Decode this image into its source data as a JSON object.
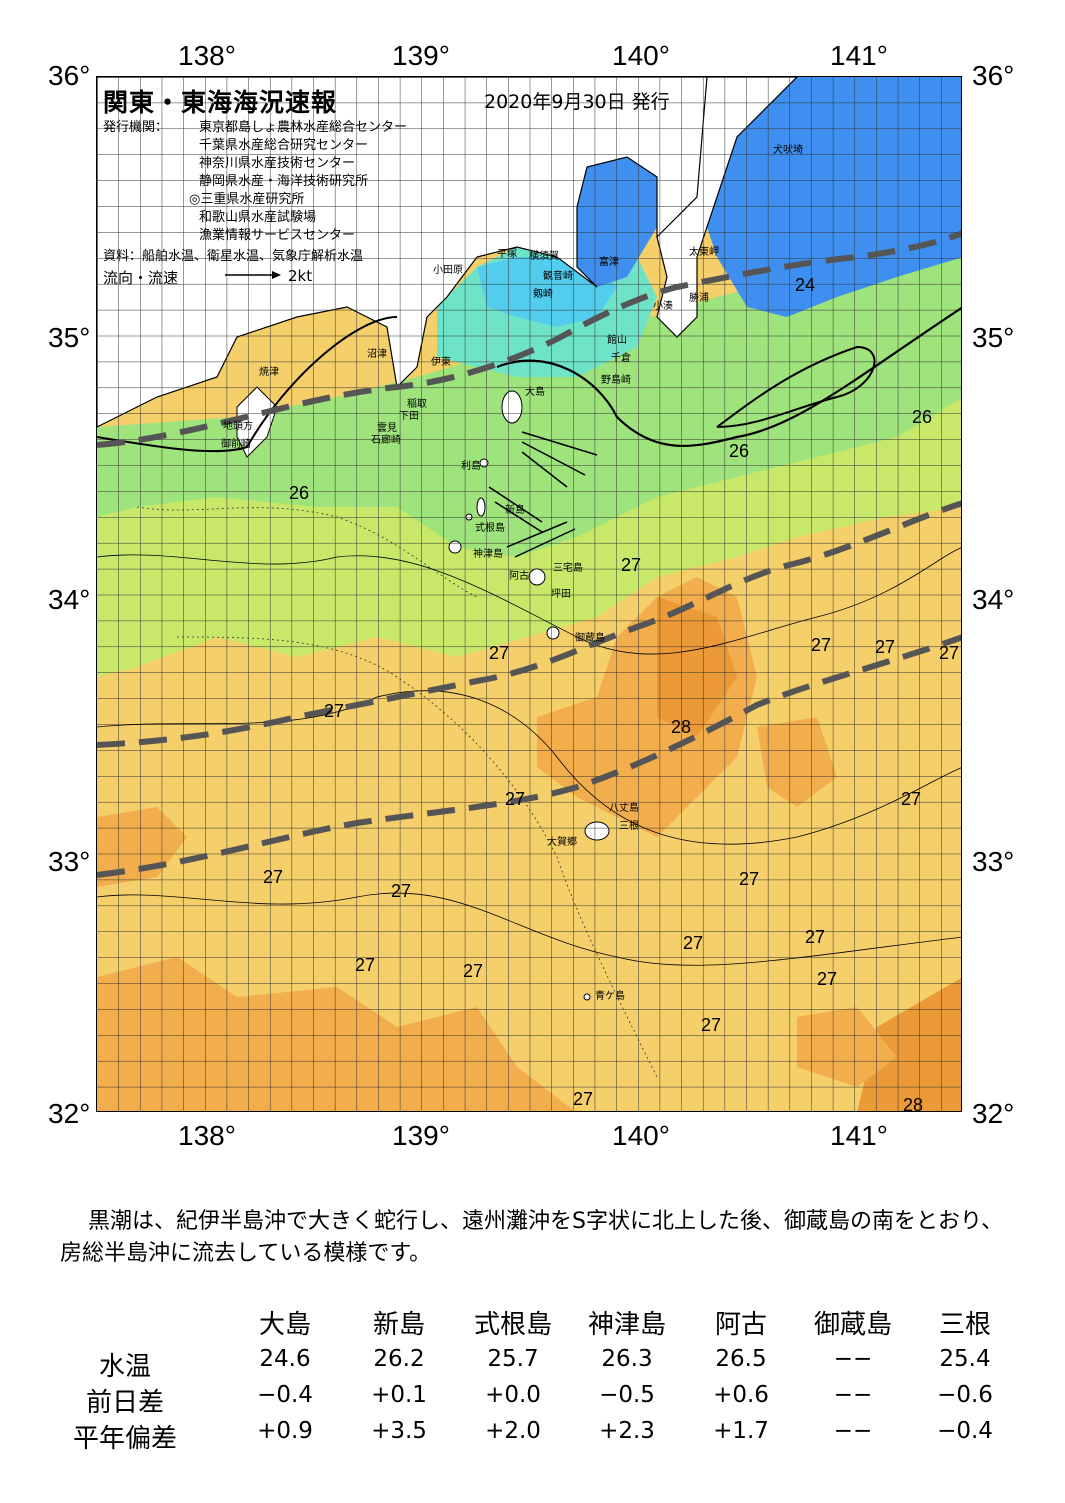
{
  "map": {
    "title": "関東・東海海況速報",
    "date": "2020年9月30日 発行",
    "agency_label": "発行機関：",
    "agencies": [
      "東京都島しょ農林水産総合センター",
      "千葉県水産総合研究センター",
      "神奈川県水産技術センター",
      "静岡県水産・海洋技術研究所",
      "◎三重県水産研究所",
      "和歌山県水産試験場",
      "漁業情報サービスセンター"
    ],
    "source": "資料：船舶水温、衛星水温、気象庁解析水温",
    "flow_label": "流向・流速",
    "flow_unit": "2kt",
    "lon_labels": [
      "138°",
      "139°",
      "140°",
      "141°"
    ],
    "lat_labels": [
      "36°",
      "35°",
      "34°",
      "33°",
      "32°"
    ],
    "temperature_labels": [
      "24",
      "26",
      "26",
      "26",
      "27",
      "27",
      "27",
      "27",
      "27",
      "27",
      "28",
      "27",
      "27",
      "27",
      "27",
      "27",
      "27",
      "27",
      "27",
      "27",
      "27",
      "27",
      "27",
      "28"
    ],
    "place_names": [
      "犬吠埼",
      "太東岬",
      "勝浦",
      "小湊",
      "富津",
      "観音崎",
      "横須賀",
      "平塚",
      "小田原",
      "剱崎",
      "館山",
      "千倉",
      "野島崎",
      "沼津",
      "伊東",
      "焼津",
      "稲取",
      "下田",
      "雲見",
      "石廊崎",
      "地頭方",
      "御前崎",
      "大島",
      "利島",
      "新島",
      "式根島",
      "神津島",
      "三宅島",
      "阿古",
      "坪田",
      "御蔵島",
      "八丈島",
      "三根",
      "大賀郷",
      "青ケ島"
    ],
    "colors": {
      "t24_blue": "#3f8ff0",
      "t25_cyan": "#52cdee",
      "t25b_teal": "#6fe3c8",
      "t26_green": "#9fe37c",
      "t26b_lime": "#c8e86a",
      "t27_yellow": "#f5cf6a",
      "t27b_orange": "#f2ad4c",
      "t28_orange": "#eb9a37",
      "land": "#ffffff",
      "kuroshio_axis": "#555555"
    }
  },
  "summary": "黒潮は、紀伊半島沖で大きく蛇行し、遠州灘沖をS字状に北上した後、御蔵島の南をとおり、房総半島沖に流去している模様です。",
  "table": {
    "columns": [
      "大島",
      "新島",
      "式根島",
      "神津島",
      "阿古",
      "御蔵島",
      "三根"
    ],
    "rows": [
      {
        "label": "水温",
        "values": [
          "24.6",
          "26.2",
          "25.7",
          "26.3",
          "26.5",
          "−−",
          "25.4"
        ]
      },
      {
        "label": "前日差",
        "values": [
          "−0.4",
          "+0.1",
          "+0.0",
          "−0.5",
          "+0.6",
          "−−",
          "−0.6"
        ]
      },
      {
        "label": "平年偏差",
        "values": [
          "+0.9",
          "+3.5",
          "+2.0",
          "+2.3",
          "+1.7",
          "−−",
          "−0.4"
        ]
      }
    ]
  }
}
